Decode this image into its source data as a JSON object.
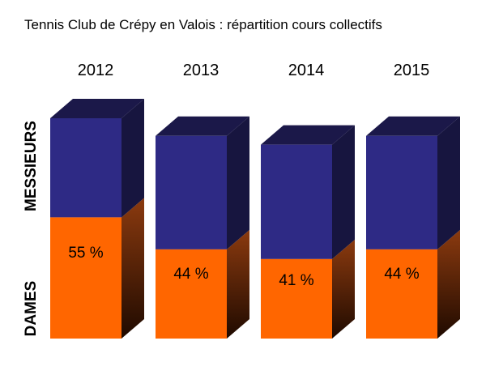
{
  "chart_data": {
    "type": "bar",
    "title": "Tennis Club de Crépy en Valois : répartition cours collectifs",
    "categories": [
      "2012",
      "2013",
      "2014",
      "2015"
    ],
    "series": [
      {
        "name": "DAMES",
        "values": [
          55,
          44,
          41,
          44
        ]
      },
      {
        "name": "MESSIEURS",
        "values": [
          45,
          56,
          59,
          56
        ]
      }
    ],
    "data_labels": [
      "55 %",
      "44 %",
      "41 %",
      "44 %"
    ],
    "stacked": true,
    "three_d": true,
    "bar_heights": [
      100,
      92,
      88,
      92
    ],
    "colors": {
      "dames_front": "#ff6600",
      "dames_side_dark": "#1f0a00",
      "dames_side_light": "#8b3a0f",
      "messieurs_front": "#2e2a85",
      "messieurs_side": "#17153f",
      "top": "#1b1849"
    }
  }
}
